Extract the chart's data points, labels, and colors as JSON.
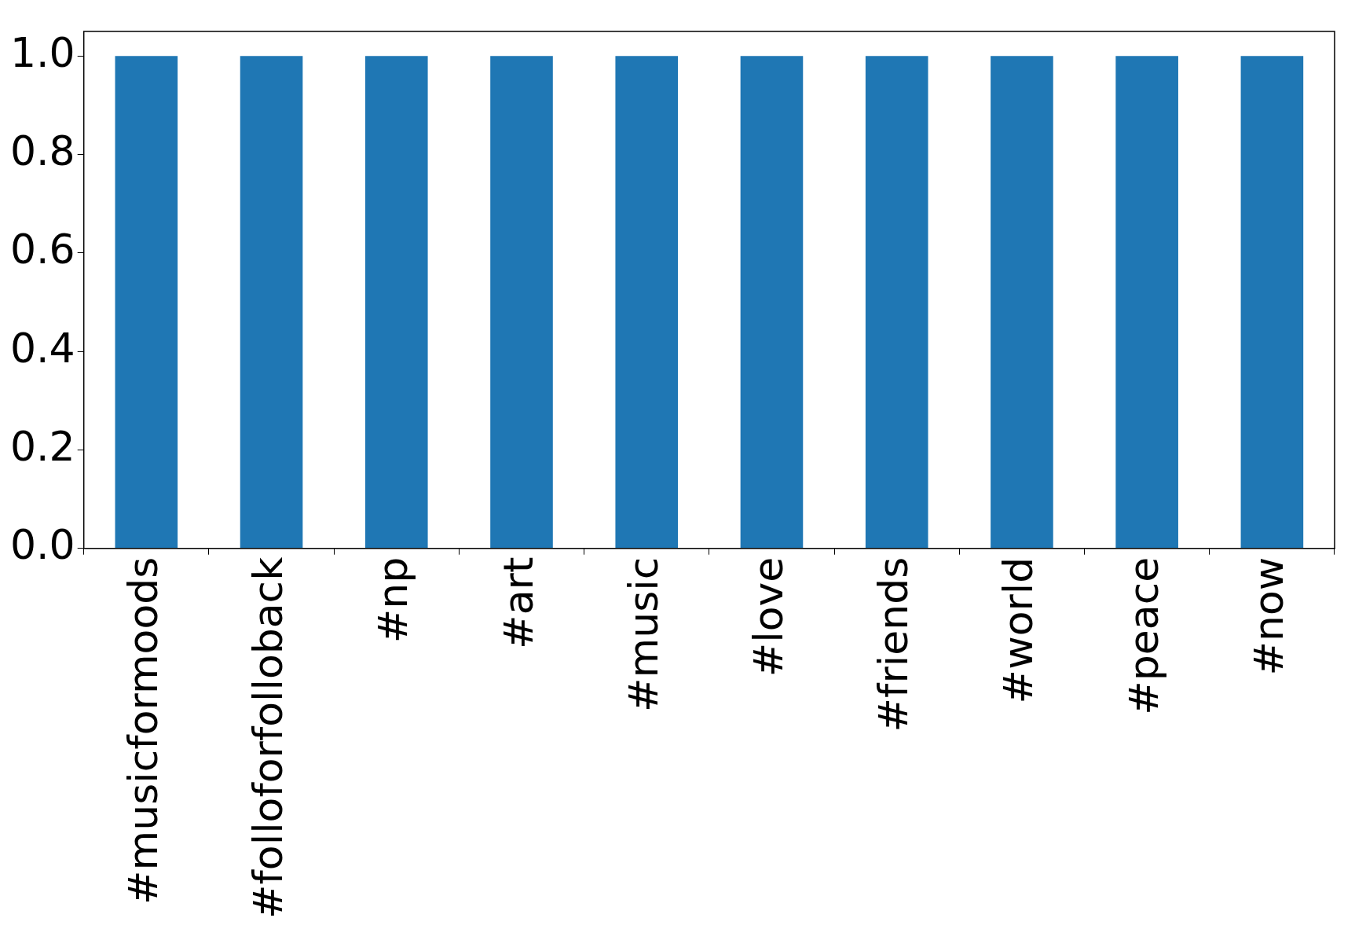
{
  "chart_data": {
    "type": "bar",
    "categories": [
      "#musicformoods",
      "#folloforfolloback",
      "#np",
      "#art",
      "#music",
      "#love",
      "#friends",
      "#world",
      "#peace",
      "#now"
    ],
    "values": [
      1.0,
      1.0,
      1.0,
      1.0,
      1.0,
      1.0,
      1.0,
      1.0,
      1.0,
      1.0
    ],
    "color": "#1f77b4",
    "ylim": [
      0,
      1.05
    ],
    "yticks": [
      {
        "value": 0,
        "label": "0.0"
      },
      {
        "value": 0.2,
        "label": "0.2"
      },
      {
        "value": 0.4,
        "label": "0.4"
      },
      {
        "value": 0.6,
        "label": "0.6"
      },
      {
        "value": 0.8,
        "label": "0.8"
      },
      {
        "value": 1.0,
        "label": "1.0"
      }
    ],
    "grid": false,
    "legend": false
  }
}
